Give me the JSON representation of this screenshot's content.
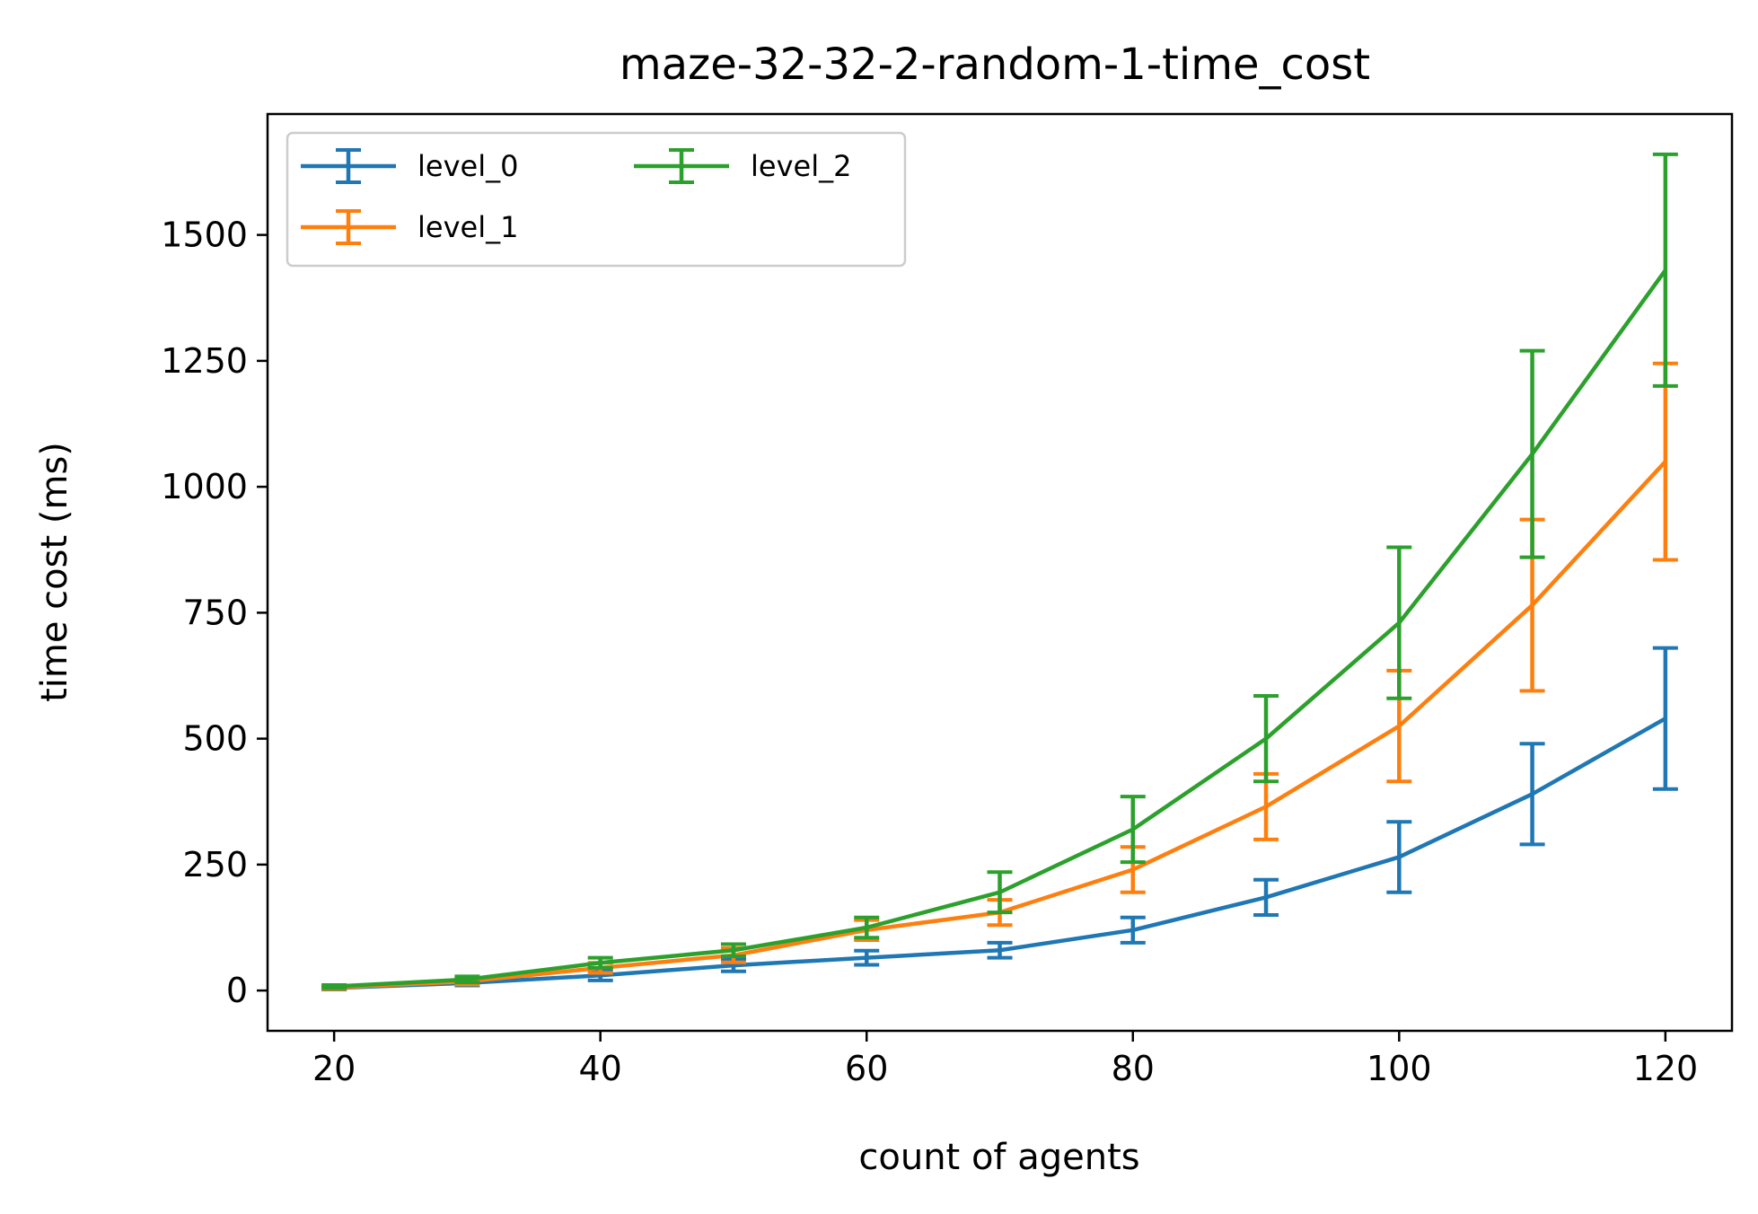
{
  "chart_data": {
    "type": "line",
    "title": "maze-32-32-2-random-1-time_cost",
    "xlabel": "count of agents",
    "ylabel": "time cost (ms)",
    "xlim": [
      15,
      125
    ],
    "ylim": [
      -80,
      1740
    ],
    "xticks": [
      20,
      40,
      60,
      80,
      100,
      120
    ],
    "yticks": [
      0,
      250,
      500,
      750,
      1000,
      1250,
      1500
    ],
    "grid": false,
    "legend": "top-left",
    "legend_columns": 2,
    "x": [
      20,
      30,
      40,
      50,
      60,
      70,
      80,
      90,
      100,
      110,
      120
    ],
    "series": [
      {
        "name": "level_0",
        "color": "#1f77b4",
        "values": [
          5,
          15,
          30,
          50,
          65,
          80,
          120,
          185,
          265,
          390,
          540
        ],
        "err": [
          3,
          5,
          10,
          12,
          14,
          15,
          25,
          35,
          70,
          100,
          140
        ]
      },
      {
        "name": "level_1",
        "color": "#ff7f0e",
        "values": [
          6,
          18,
          45,
          70,
          120,
          155,
          240,
          365,
          525,
          765,
          1050
        ],
        "err": [
          3,
          6,
          10,
          14,
          20,
          25,
          45,
          65,
          110,
          170,
          195
        ]
      },
      {
        "name": "level_2",
        "color": "#2ca02c",
        "values": [
          8,
          22,
          55,
          80,
          125,
          195,
          320,
          500,
          730,
          1065,
          1430
        ],
        "err": [
          3,
          6,
          10,
          12,
          20,
          40,
          65,
          85,
          150,
          205,
          230
        ]
      }
    ]
  }
}
